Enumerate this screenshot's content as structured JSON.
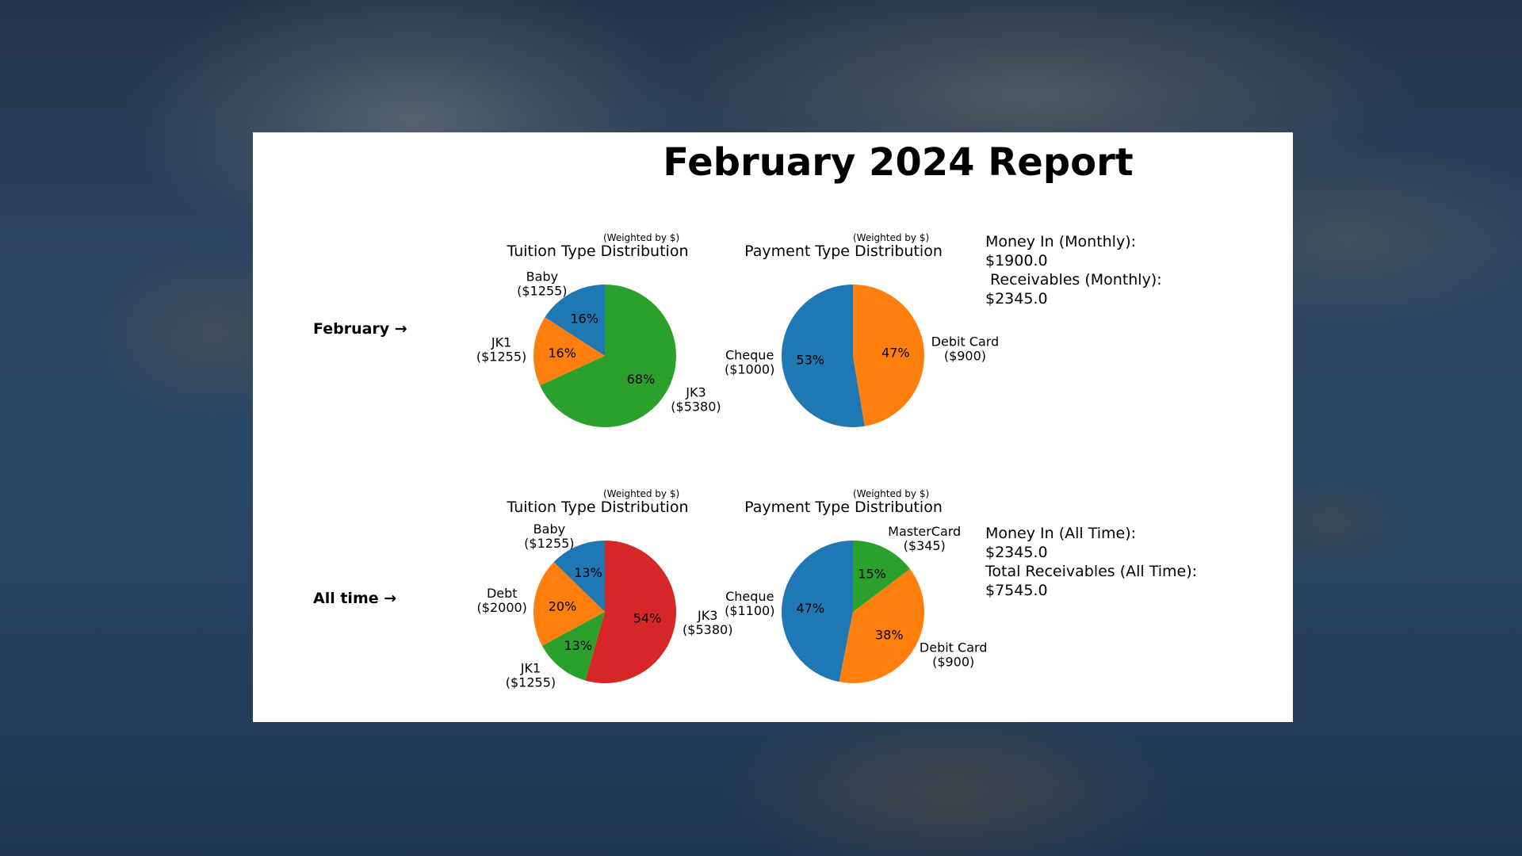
{
  "report": {
    "title": "February 2024 Report"
  },
  "rows": [
    {
      "label": "February →",
      "summary": [
        "Money In (Monthly):",
        "$1900.0",
        " Receivables (Monthly):",
        "$2345.0"
      ]
    },
    {
      "label": "All time →",
      "summary": [
        "Money In (All Time):",
        "$2345.0",
        "Total Receivables (All Time):",
        "$7545.0"
      ]
    }
  ],
  "chart_data": [
    {
      "type": "pie",
      "title": "Tuition Type Distribution",
      "subtitle": "(Weighted by $)",
      "slices": [
        {
          "name": "Baby",
          "value": 1255,
          "label": "Baby\n($1255)",
          "pct": "16%",
          "color": "#1f77b4"
        },
        {
          "name": "JK1",
          "value": 1255,
          "label": "JK1\n($1255)",
          "pct": "16%",
          "color": "#ff7f0e"
        },
        {
          "name": "JK3",
          "value": 5380,
          "label": "JK3\n($5380)",
          "pct": "68%",
          "color": "#2ca02c"
        }
      ]
    },
    {
      "type": "pie",
      "title": "Payment Type Distribution",
      "subtitle": "(Weighted by $)",
      "slices": [
        {
          "name": "Cheque",
          "value": 1000,
          "label": "Cheque\n($1000)",
          "pct": "53%",
          "color": "#1f77b4"
        },
        {
          "name": "Debit Card",
          "value": 900,
          "label": "Debit Card\n($900)",
          "pct": "47%",
          "color": "#ff7f0e"
        }
      ]
    },
    {
      "type": "pie",
      "title": "Tuition Type Distribution",
      "subtitle": "(Weighted by $)",
      "slices": [
        {
          "name": "Baby",
          "value": 1255,
          "label": "Baby\n($1255)",
          "pct": "13%",
          "color": "#1f77b4"
        },
        {
          "name": "Debt",
          "value": 2000,
          "label": "Debt\n($2000)",
          "pct": "20%",
          "color": "#ff7f0e"
        },
        {
          "name": "JK1",
          "value": 1255,
          "label": "JK1\n($1255)",
          "pct": "13%",
          "color": "#2ca02c"
        },
        {
          "name": "JK3",
          "value": 5380,
          "label": "JK3\n($5380)",
          "pct": "54%",
          "color": "#d62728"
        }
      ]
    },
    {
      "type": "pie",
      "title": "Payment Type Distribution",
      "subtitle": "(Weighted by $)",
      "slices": [
        {
          "name": "Cheque",
          "value": 1100,
          "label": "Cheque\n($1100)",
          "pct": "47%",
          "color": "#1f77b4"
        },
        {
          "name": "Debit Card",
          "value": 900,
          "label": "Debit Card\n($900)",
          "pct": "38%",
          "color": "#ff7f0e"
        },
        {
          "name": "MasterCard",
          "value": 345,
          "label": "MasterCard\n($345)",
          "pct": "15%",
          "color": "#2ca02c"
        }
      ]
    }
  ]
}
